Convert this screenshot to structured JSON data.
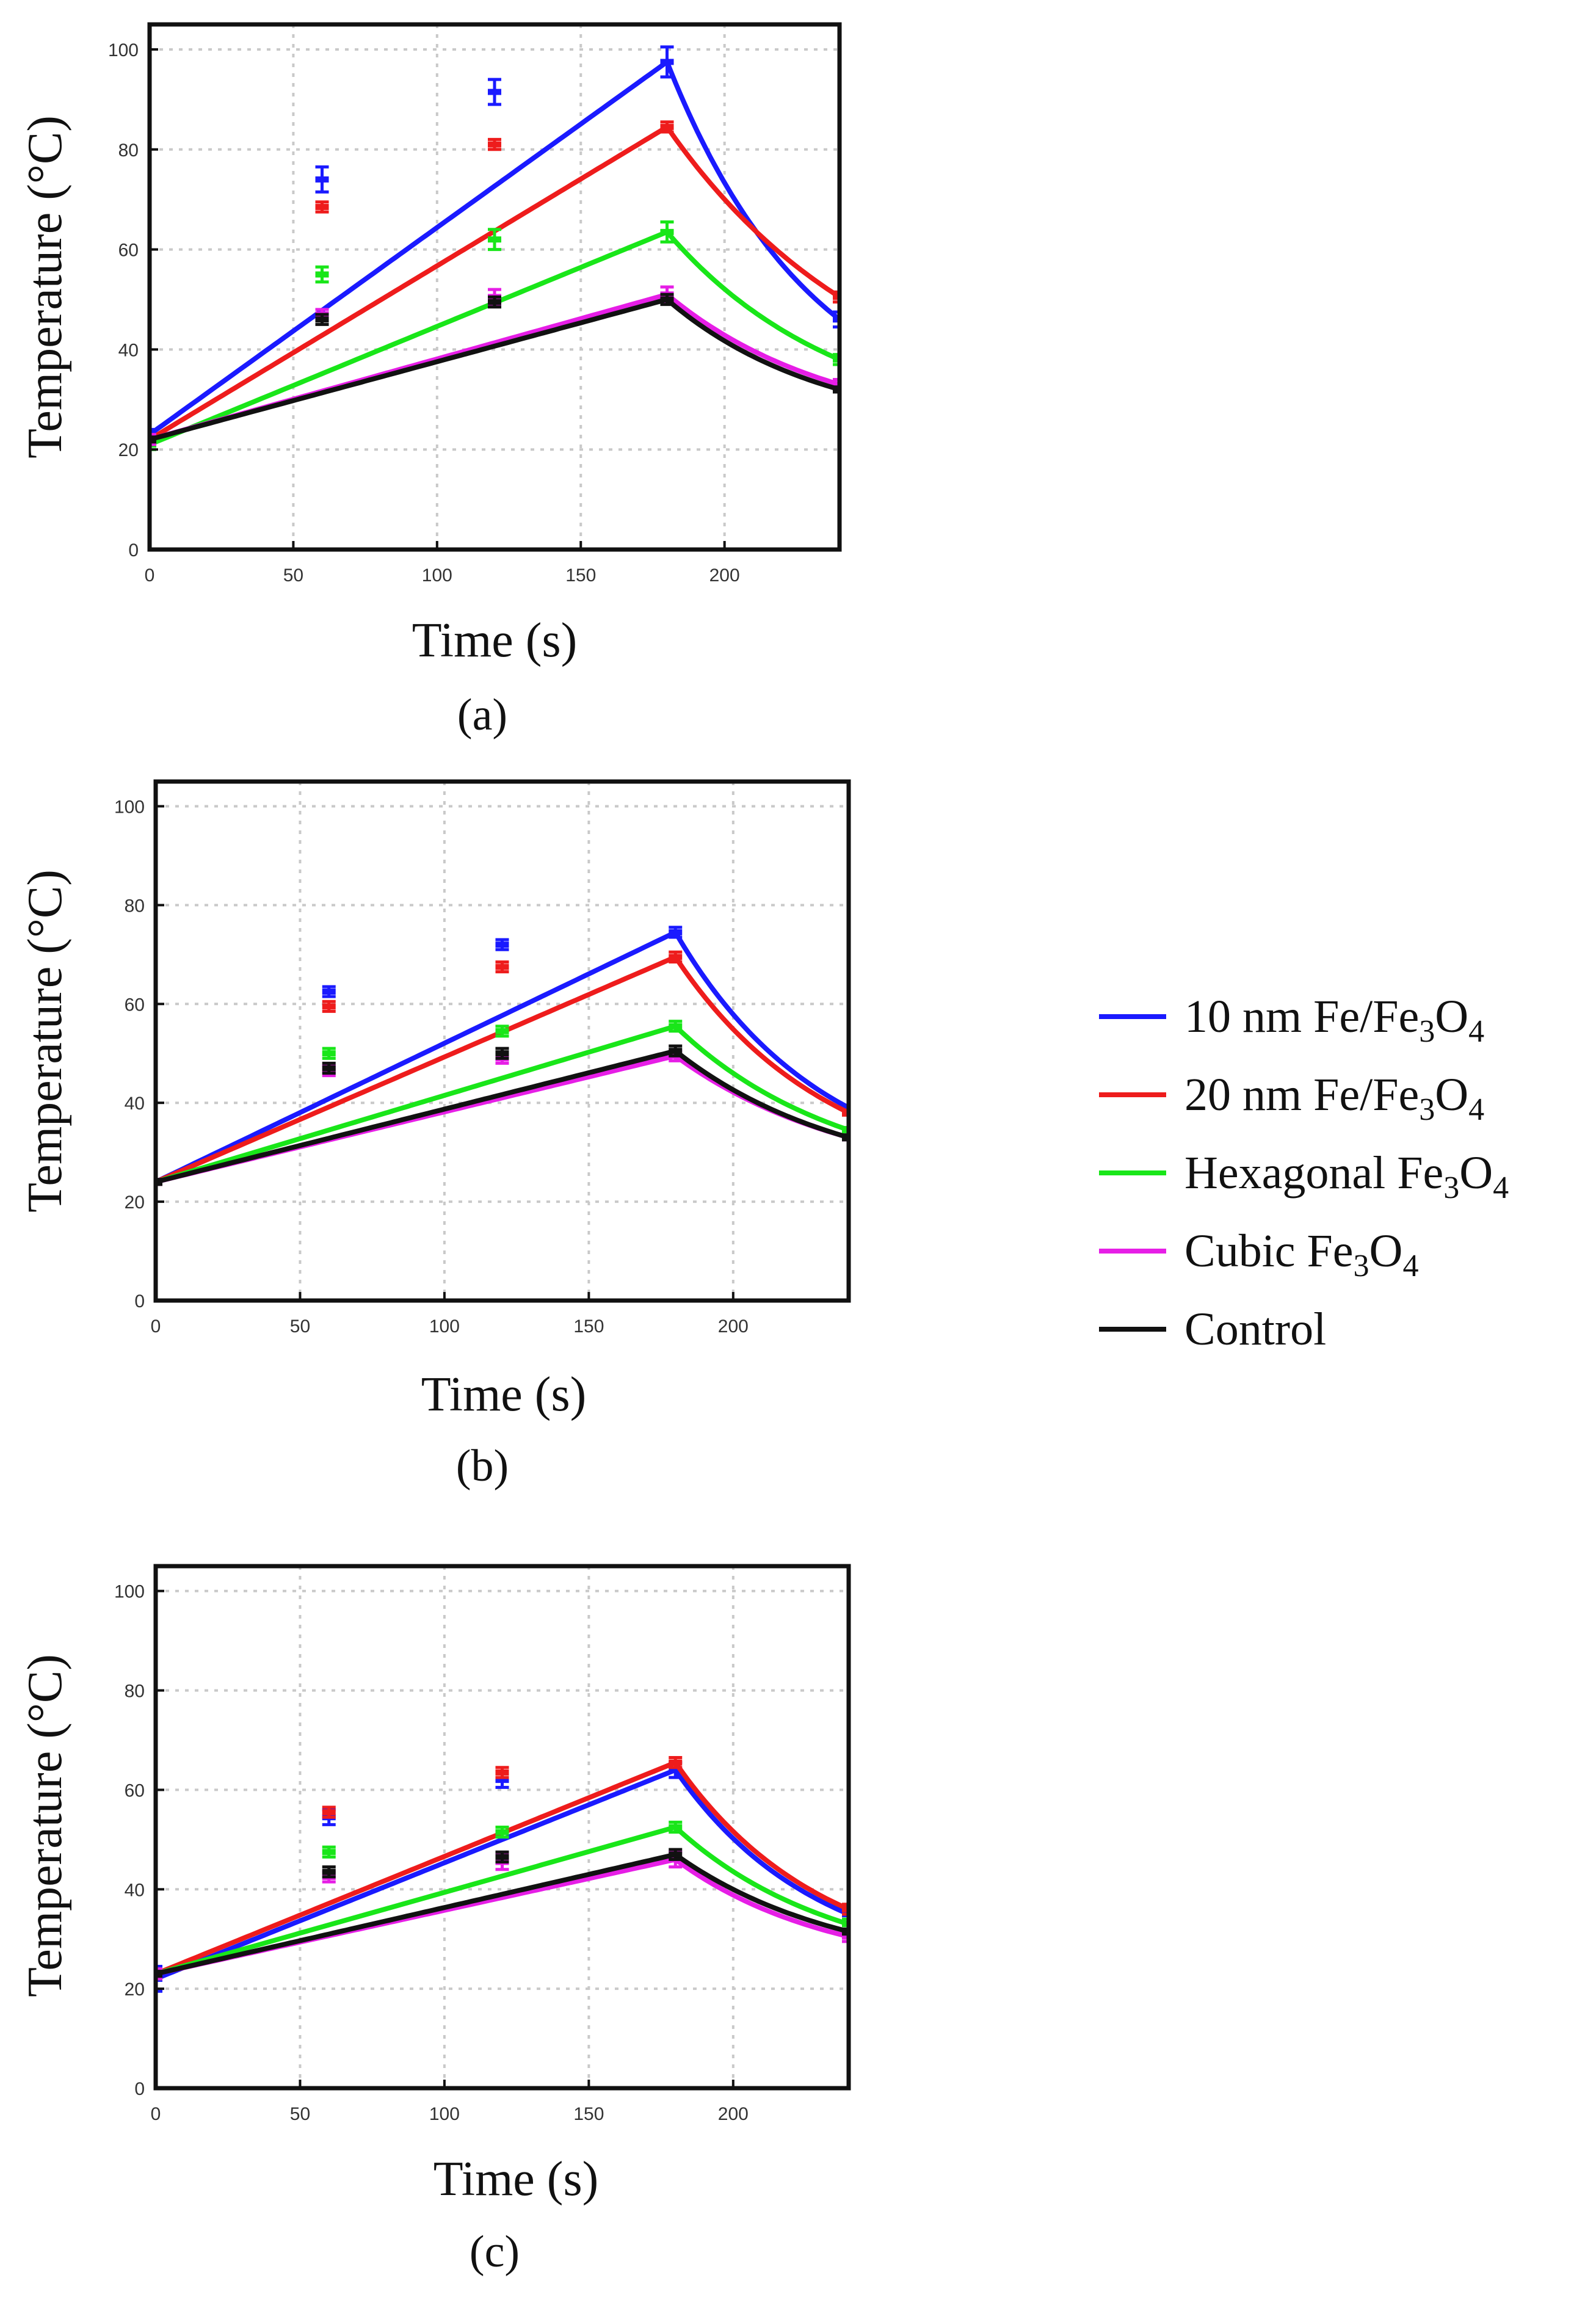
{
  "legend": [
    {
      "name": "10 nm Fe/Fe3O4",
      "base": "10 nm Fe/Fe",
      "sub1": "3",
      "mid": "O",
      "sub2": "4",
      "color": "#1a1aff"
    },
    {
      "name": "20 nm Fe/Fe3O4",
      "base": "20 nm Fe/Fe",
      "sub1": "3",
      "mid": "O",
      "sub2": "4",
      "color": "#ee1c1c"
    },
    {
      "name": "Hexagonal Fe3O4",
      "base": "Hexagonal Fe",
      "sub1": "3",
      "mid": "O",
      "sub2": "4",
      "color": "#19e619"
    },
    {
      "name": "Cubic Fe3O4",
      "base": "Cubic Fe",
      "sub1": "3",
      "mid": "O",
      "sub2": "4",
      "color": "#e61ee6"
    },
    {
      "name": "Control",
      "base": "Control",
      "sub1": "",
      "mid": "",
      "sub2": "",
      "color": "#111111"
    }
  ],
  "chart_data": [
    {
      "type": "line",
      "panel_label": "(a)",
      "xlabel": "Time (s)",
      "ylabel": "Temperature (°C)",
      "xlim": [
        0,
        240
      ],
      "ylim": [
        0,
        105
      ],
      "xticks": [
        0,
        50,
        100,
        150,
        200
      ],
      "yticks": [
        0,
        20,
        40,
        60,
        80,
        100
      ],
      "grid": true,
      "x": [
        0,
        60,
        120,
        180,
        240
      ],
      "series": [
        {
          "name": "10 nm Fe/Fe3O4",
          "values": [
            23,
            74,
            91.5,
            97.5,
            46
          ],
          "errors": [
            1,
            2.5,
            2.5,
            3,
            1.5
          ]
        },
        {
          "name": "20 nm Fe/Fe3O4",
          "values": [
            22,
            68.5,
            81,
            84.5,
            50.5
          ],
          "errors": [
            1,
            1,
            1,
            1,
            1
          ]
        },
        {
          "name": "Hexagonal Fe3O4",
          "values": [
            21,
            55,
            62,
            63.5,
            38
          ],
          "errors": [
            1,
            1.5,
            2,
            2,
            1
          ]
        },
        {
          "name": "Cubic Fe3O4",
          "values": [
            22,
            47,
            50.5,
            51,
            33
          ],
          "errors": [
            1,
            1,
            1.5,
            1.5,
            1
          ]
        },
        {
          "name": "Control",
          "values": [
            22,
            46,
            49.5,
            50,
            32
          ],
          "errors": [
            0.5,
            1,
            1,
            1,
            0.5
          ]
        }
      ]
    },
    {
      "type": "line",
      "panel_label": "(b)",
      "xlabel": "Time (s)",
      "ylabel": "Temperature (°C)",
      "xlim": [
        0,
        240
      ],
      "ylim": [
        0,
        105
      ],
      "xticks": [
        0,
        50,
        100,
        150,
        200
      ],
      "yticks": [
        0,
        20,
        40,
        60,
        80,
        100
      ],
      "grid": true,
      "x": [
        0,
        60,
        120,
        180,
        240
      ],
      "series": [
        {
          "name": "10 nm Fe/Fe3O4",
          "values": [
            24,
            62.5,
            72,
            74.5,
            39
          ],
          "errors": [
            0.5,
            1,
            1,
            1,
            0.5
          ]
        },
        {
          "name": "20 nm Fe/Fe3O4",
          "values": [
            24,
            59.5,
            67.5,
            69.5,
            38
          ],
          "errors": [
            0.5,
            1,
            1,
            1,
            0.5
          ]
        },
        {
          "name": "Hexagonal Fe3O4",
          "values": [
            24,
            50,
            54.5,
            55.5,
            34.5
          ],
          "errors": [
            0.5,
            1,
            1,
            1,
            0.5
          ]
        },
        {
          "name": "Cubic Fe3O4",
          "values": [
            24,
            46.5,
            49,
            49.5,
            33
          ],
          "errors": [
            0.5,
            1,
            1,
            1,
            0.5
          ]
        },
        {
          "name": "Control",
          "values": [
            24,
            47,
            50,
            50.5,
            33
          ],
          "errors": [
            0.5,
            1,
            1,
            1,
            0.5
          ]
        }
      ]
    },
    {
      "type": "line",
      "panel_label": "(c)",
      "xlabel": "Time (s)",
      "ylabel": "Temperature (°C)",
      "xlim": [
        0,
        240
      ],
      "ylim": [
        0,
        105
      ],
      "xticks": [
        0,
        50,
        100,
        150,
        200
      ],
      "yticks": [
        0,
        20,
        40,
        60,
        80,
        100
      ],
      "grid": true,
      "x": [
        0,
        60,
        120,
        180,
        240
      ],
      "series": [
        {
          "name": "10 nm Fe/Fe3O4",
          "values": [
            22,
            54.5,
            62,
            64,
            35
          ],
          "errors": [
            2.5,
            1.5,
            1.5,
            1.5,
            1
          ]
        },
        {
          "name": "20 nm Fe/Fe3O4",
          "values": [
            23,
            55.5,
            63.5,
            65.5,
            36
          ],
          "errors": [
            1,
            1,
            1,
            1,
            1
          ]
        },
        {
          "name": "Hexagonal Fe3O4",
          "values": [
            23,
            47.5,
            51.5,
            52.5,
            33
          ],
          "errors": [
            1,
            1,
            1,
            1,
            1
          ]
        },
        {
          "name": "Cubic Fe3O4",
          "values": [
            23,
            42.5,
            45.5,
            46,
            30.5
          ],
          "errors": [
            1,
            1,
            1.5,
            1.5,
            1
          ]
        },
        {
          "name": "Control",
          "values": [
            23,
            43.5,
            46.5,
            47,
            31.5
          ],
          "errors": [
            0.5,
            1,
            1,
            1,
            0.5
          ]
        }
      ]
    }
  ]
}
